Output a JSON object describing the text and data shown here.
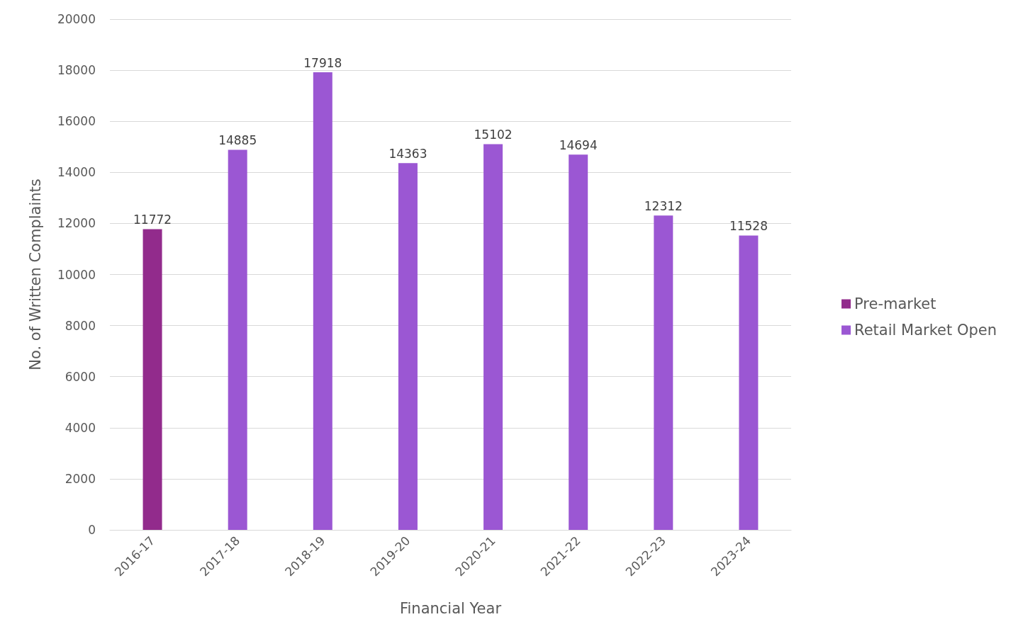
{
  "chart_data": {
    "type": "bar",
    "xlabel": "Financial Year",
    "ylabel": "No. of Written Complaints",
    "categories": [
      "2016-17",
      "2017-18",
      "2018-19",
      "2019-20",
      "2020-21",
      "2021-22",
      "2022-23",
      "2023-24"
    ],
    "series": [
      {
        "name": "Pre-market",
        "color": "#922b8c",
        "values": [
          11772,
          null,
          null,
          null,
          null,
          null,
          null,
          null
        ]
      },
      {
        "name": "Retail Market Open",
        "color": "#9b57d3",
        "values": [
          null,
          14885,
          17918,
          14363,
          15102,
          14694,
          12312,
          11528
        ]
      }
    ],
    "ylim": [
      0,
      20000
    ],
    "yticks": [
      0,
      2000,
      4000,
      6000,
      8000,
      10000,
      12000,
      14000,
      16000,
      18000,
      20000
    ],
    "grid": "y",
    "legend": "right",
    "data_labels": true
  }
}
